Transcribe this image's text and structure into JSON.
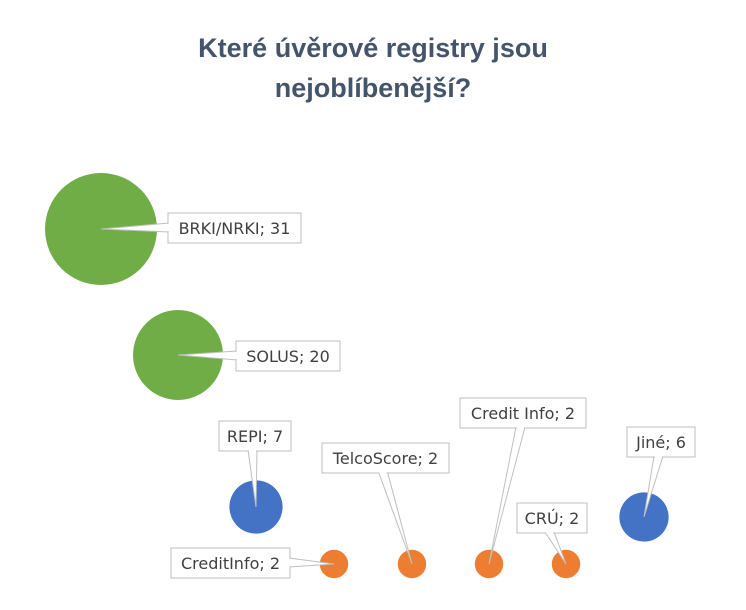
{
  "chart_data": {
    "type": "bubble",
    "title_lines": [
      "Které úvěrové registry jsou",
      "nejoblíbenější?"
    ],
    "colors": {
      "green": "#70ad47",
      "blue": "#4472c4",
      "orange": "#ed7d31"
    },
    "points": [
      {
        "label": "BRKI/NRKI; 31",
        "name": "BRKI/NRKI",
        "value": 31,
        "color": "green"
      },
      {
        "label": "SOLUS; 20",
        "name": "SOLUS",
        "value": 20,
        "color": "green"
      },
      {
        "label": "REPI; 7",
        "name": "REPI",
        "value": 7,
        "color": "blue"
      },
      {
        "label": "Jiné; 6",
        "name": "Jiné",
        "value": 6,
        "color": "blue"
      },
      {
        "label": "CreditInfo; 2",
        "name": "CreditInfo",
        "value": 2,
        "color": "orange"
      },
      {
        "label": "TelcoScore; 2",
        "name": "TelcoScore",
        "value": 2,
        "color": "orange"
      },
      {
        "label": "Credit Info; 2",
        "name": "Credit Info",
        "value": 2,
        "color": "orange"
      },
      {
        "label": "CRÚ; 2",
        "name": "CRÚ",
        "value": 2,
        "color": "orange"
      }
    ]
  }
}
